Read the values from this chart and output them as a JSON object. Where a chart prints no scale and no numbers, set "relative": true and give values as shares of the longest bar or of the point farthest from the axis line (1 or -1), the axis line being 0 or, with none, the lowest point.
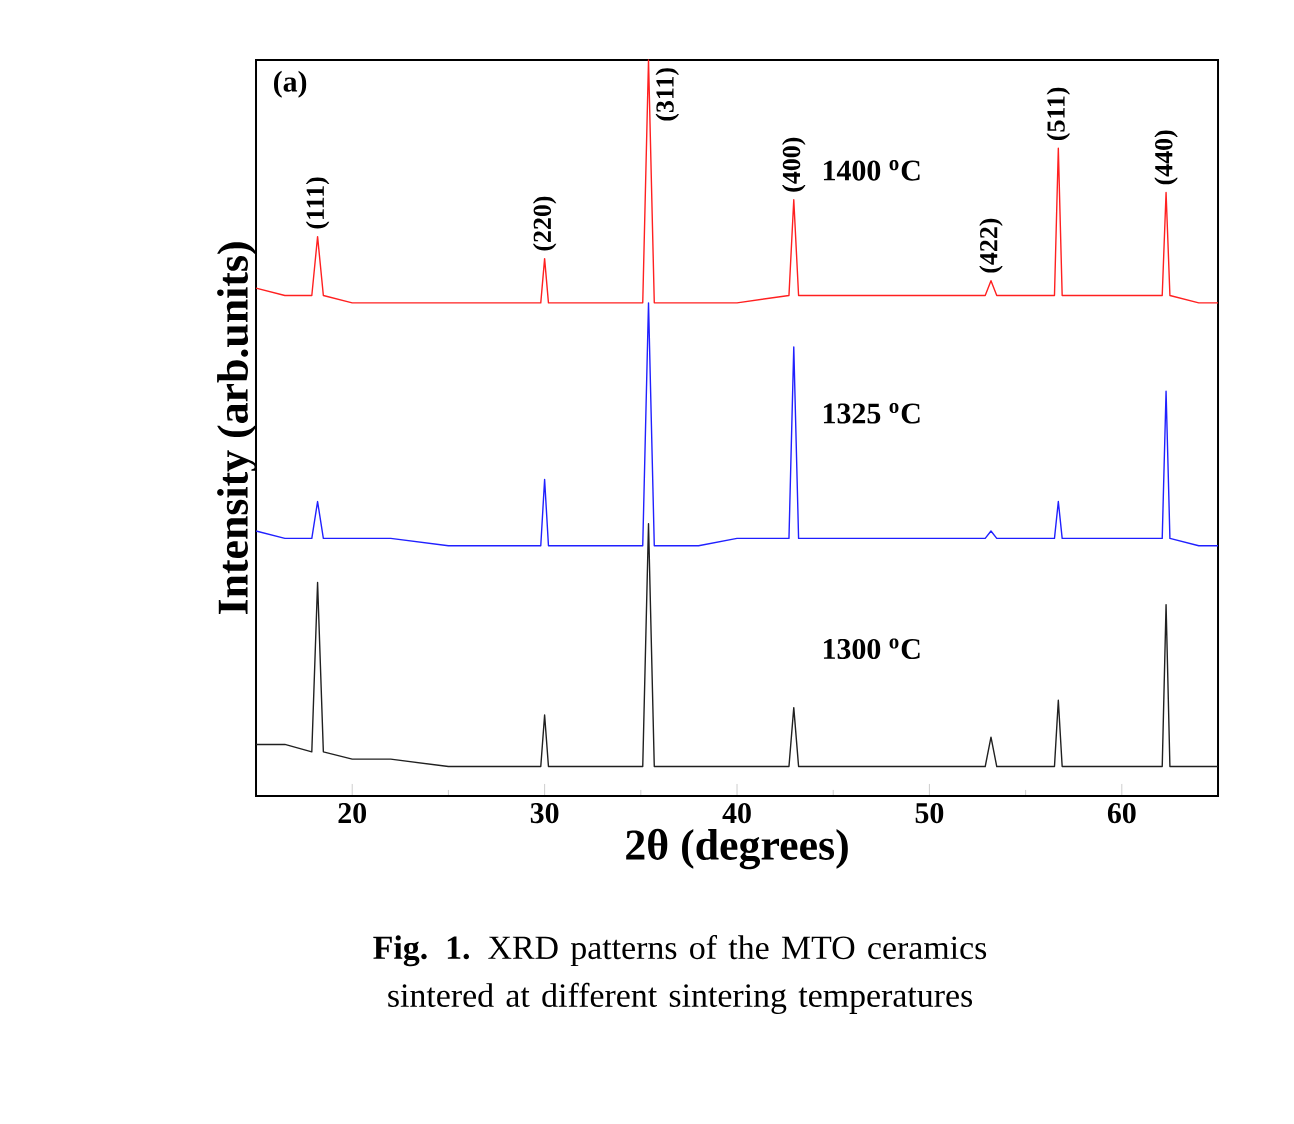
{
  "chart_data": {
    "type": "line",
    "relative": true,
    "xlabel": "2θ (degrees)",
    "ylabel": "Intensity (arb.units)",
    "xlim": [
      15,
      65
    ],
    "xticks": [
      20,
      30,
      40,
      50,
      60
    ],
    "x": [
      15,
      16.5,
      17.9,
      18.2,
      18.5,
      20,
      22,
      25,
      27,
      29.8,
      30.0,
      30.2,
      33,
      35.1,
      35.4,
      35.7,
      38,
      40,
      42.7,
      42.95,
      43.2,
      46,
      49,
      52.9,
      53.2,
      53.5,
      55,
      56.5,
      56.7,
      56.9,
      59,
      62.1,
      62.3,
      62.5,
      64,
      65
    ],
    "series": [
      {
        "name": "1400 $^{o}$C",
        "color": "#ff2020",
        "values": [
          0.69,
          0.68,
          0.68,
          0.76,
          0.68,
          0.67,
          0.67,
          0.67,
          0.67,
          0.67,
          0.73,
          0.67,
          0.67,
          0.67,
          1.0,
          0.67,
          0.67,
          0.67,
          0.68,
          0.81,
          0.68,
          0.68,
          0.68,
          0.68,
          0.7,
          0.68,
          0.68,
          0.68,
          0.88,
          0.68,
          0.68,
          0.68,
          0.82,
          0.68,
          0.67,
          0.67
        ]
      },
      {
        "name": "1325 $^{o}$C",
        "color": "#2020ff",
        "values": [
          0.36,
          0.35,
          0.35,
          0.4,
          0.35,
          0.35,
          0.35,
          0.34,
          0.34,
          0.34,
          0.43,
          0.34,
          0.34,
          0.34,
          0.67,
          0.34,
          0.34,
          0.35,
          0.35,
          0.61,
          0.35,
          0.35,
          0.35,
          0.35,
          0.36,
          0.35,
          0.35,
          0.35,
          0.4,
          0.35,
          0.35,
          0.35,
          0.55,
          0.35,
          0.34,
          0.34
        ]
      },
      {
        "name": "1300 $^{o}$C",
        "color": "#202020",
        "values": [
          0.07,
          0.07,
          0.06,
          0.29,
          0.06,
          0.05,
          0.05,
          0.04,
          0.04,
          0.04,
          0.11,
          0.04,
          0.04,
          0.04,
          0.37,
          0.04,
          0.04,
          0.04,
          0.04,
          0.12,
          0.04,
          0.04,
          0.04,
          0.04,
          0.08,
          0.04,
          0.04,
          0.04,
          0.13,
          0.04,
          0.04,
          0.04,
          0.26,
          0.04,
          0.04,
          0.04
        ]
      }
    ],
    "annotations": [
      "(a)",
      {
        "text": "(111)",
        "x": 18.2,
        "y": 0.76
      },
      {
        "text": "(220)",
        "x": 30.0,
        "y": 0.73
      },
      {
        "text": "(311)",
        "x": 35.4,
        "y": 1.0
      },
      {
        "text": "(400)",
        "x": 42.95,
        "y": 0.81
      },
      {
        "text": "(422)",
        "x": 53.2,
        "y": 0.7
      },
      {
        "text": "(511)",
        "x": 56.7,
        "y": 0.88
      },
      {
        "text": "(440)",
        "x": 62.3,
        "y": 0.82
      },
      "**Fig. 1.** XRD patterns of the MTO ceramics sintered at different sintering temperatures"
    ]
  }
}
